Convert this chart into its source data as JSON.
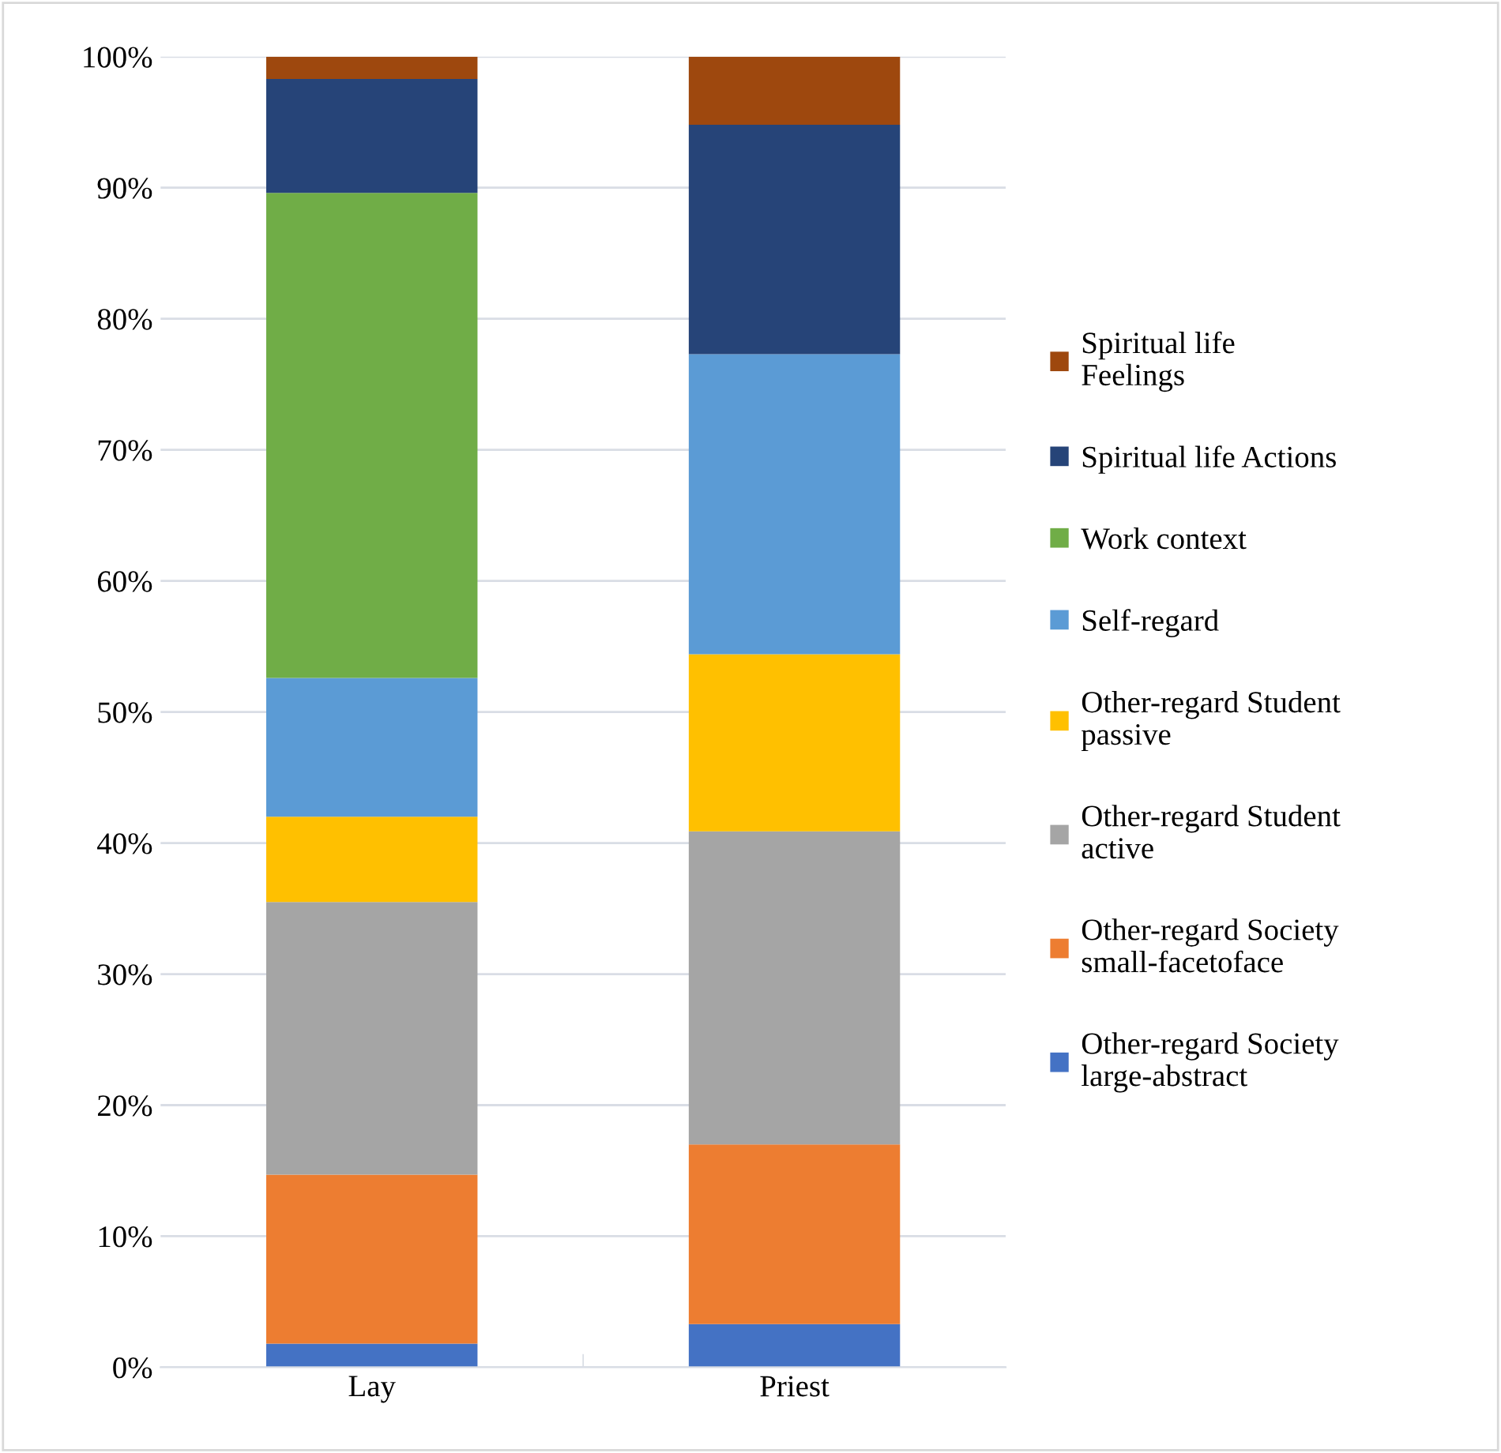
{
  "chart_data": {
    "type": "bar",
    "stacked": true,
    "categories": [
      "Lay",
      "Priest"
    ],
    "series": [
      {
        "name": "Other-regard Society large-abstract",
        "color": "#4472c4",
        "values": [
          1.8,
          3.3
        ]
      },
      {
        "name": "Other-regard Society small-facetoface",
        "color": "#ed7d31",
        "values": [
          12.9,
          13.7
        ]
      },
      {
        "name": "Other-regard Student active",
        "color": "#a5a5a5",
        "values": [
          20.8,
          23.9
        ]
      },
      {
        "name": "Other-regard Student passive",
        "color": "#ffc000",
        "values": [
          6.5,
          13.5
        ]
      },
      {
        "name": "Self-regard",
        "color": "#5b9bd5",
        "values": [
          10.6,
          22.9
        ]
      },
      {
        "name": "Work context",
        "color": "#70ad47",
        "values": [
          37.0,
          0
        ]
      },
      {
        "name": "Spiritual life Actions",
        "color": "#264478",
        "values": [
          8.7,
          17.5
        ]
      },
      {
        "name": "Spiritual life Feelings",
        "color": "#9e480e",
        "values": [
          1.7,
          5.2
        ]
      }
    ],
    "ylim": [
      0,
      100
    ],
    "yticks": [
      {
        "value": 0,
        "label": "0%"
      },
      {
        "value": 10,
        "label": "10%"
      },
      {
        "value": 20,
        "label": "20%"
      },
      {
        "value": 30,
        "label": "30%"
      },
      {
        "value": 40,
        "label": "40%"
      },
      {
        "value": 50,
        "label": "50%"
      },
      {
        "value": 60,
        "label": "60%"
      },
      {
        "value": 70,
        "label": "70%"
      },
      {
        "value": 80,
        "label": "80%"
      },
      {
        "value": 90,
        "label": "90%"
      },
      {
        "value": 100,
        "label": "100%"
      }
    ],
    "grid": "y",
    "legend": "right"
  }
}
